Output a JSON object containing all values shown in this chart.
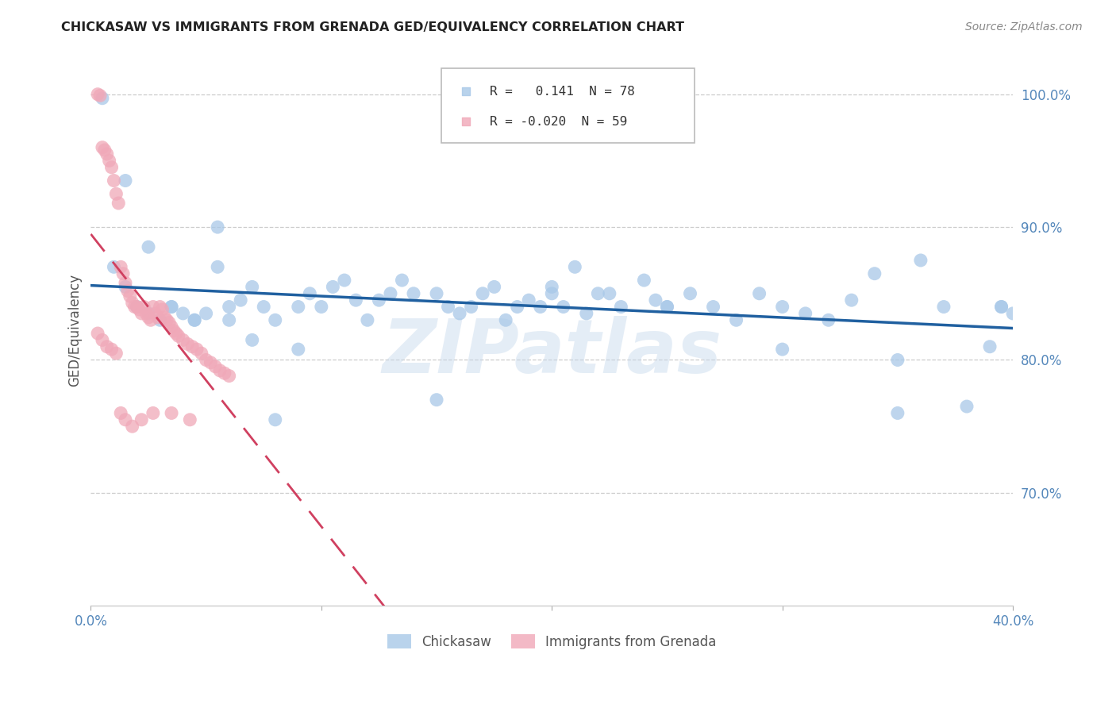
{
  "title": "CHICKASAW VS IMMIGRANTS FROM GRENADA GED/EQUIVALENCY CORRELATION CHART",
  "source": "Source: ZipAtlas.com",
  "ylabel": "GED/Equivalency",
  "xlim": [
    0.0,
    0.4
  ],
  "ylim": [
    0.615,
    1.03
  ],
  "blue_color": "#a8c8e8",
  "pink_color": "#f0a8b8",
  "trend_blue": "#2060a0",
  "trend_pink": "#d04060",
  "watermark": "ZIPatlas",
  "blue_x": [
    0.005,
    0.01,
    0.015,
    0.02,
    0.025,
    0.03,
    0.035,
    0.04,
    0.045,
    0.05,
    0.055,
    0.06,
    0.065,
    0.07,
    0.075,
    0.08,
    0.09,
    0.095,
    0.1,
    0.105,
    0.11,
    0.115,
    0.12,
    0.125,
    0.13,
    0.135,
    0.14,
    0.15,
    0.155,
    0.16,
    0.165,
    0.17,
    0.175,
    0.18,
    0.185,
    0.19,
    0.195,
    0.2,
    0.205,
    0.21,
    0.215,
    0.22,
    0.225,
    0.23,
    0.24,
    0.245,
    0.25,
    0.26,
    0.27,
    0.28,
    0.29,
    0.3,
    0.31,
    0.32,
    0.33,
    0.34,
    0.35,
    0.36,
    0.37,
    0.38,
    0.39,
    0.395,
    0.4,
    0.015,
    0.025,
    0.035,
    0.045,
    0.055,
    0.15,
    0.2,
    0.25,
    0.3,
    0.35,
    0.395,
    0.06,
    0.07,
    0.08,
    0.09
  ],
  "blue_y": [
    0.997,
    0.87,
    0.855,
    0.84,
    0.835,
    0.83,
    0.84,
    0.835,
    0.83,
    0.835,
    0.9,
    0.84,
    0.845,
    0.855,
    0.84,
    0.83,
    0.84,
    0.85,
    0.84,
    0.855,
    0.86,
    0.845,
    0.83,
    0.845,
    0.85,
    0.86,
    0.85,
    0.85,
    0.84,
    0.835,
    0.84,
    0.85,
    0.855,
    0.83,
    0.84,
    0.845,
    0.84,
    0.855,
    0.84,
    0.87,
    0.835,
    0.85,
    0.85,
    0.84,
    0.86,
    0.845,
    0.84,
    0.85,
    0.84,
    0.83,
    0.85,
    0.84,
    0.835,
    0.83,
    0.845,
    0.865,
    0.8,
    0.875,
    0.84,
    0.765,
    0.81,
    0.84,
    0.835,
    0.935,
    0.885,
    0.84,
    0.83,
    0.87,
    0.77,
    0.85,
    0.84,
    0.808,
    0.76,
    0.84,
    0.83,
    0.815,
    0.755,
    0.808
  ],
  "pink_x": [
    0.003,
    0.004,
    0.005,
    0.006,
    0.007,
    0.008,
    0.009,
    0.01,
    0.011,
    0.012,
    0.013,
    0.014,
    0.015,
    0.016,
    0.017,
    0.018,
    0.019,
    0.02,
    0.021,
    0.022,
    0.023,
    0.024,
    0.025,
    0.026,
    0.027,
    0.028,
    0.029,
    0.03,
    0.031,
    0.032,
    0.033,
    0.034,
    0.035,
    0.036,
    0.037,
    0.038,
    0.04,
    0.042,
    0.044,
    0.046,
    0.048,
    0.05,
    0.052,
    0.054,
    0.056,
    0.058,
    0.06,
    0.003,
    0.005,
    0.007,
    0.009,
    0.011,
    0.013,
    0.015,
    0.018,
    0.022,
    0.027,
    0.035,
    0.043
  ],
  "pink_y": [
    1.0,
    0.999,
    0.96,
    0.958,
    0.955,
    0.95,
    0.945,
    0.935,
    0.925,
    0.918,
    0.87,
    0.865,
    0.858,
    0.852,
    0.848,
    0.843,
    0.84,
    0.84,
    0.838,
    0.835,
    0.84,
    0.835,
    0.832,
    0.83,
    0.84,
    0.835,
    0.832,
    0.84,
    0.838,
    0.832,
    0.83,
    0.828,
    0.825,
    0.822,
    0.82,
    0.818,
    0.815,
    0.812,
    0.81,
    0.808,
    0.805,
    0.8,
    0.798,
    0.795,
    0.792,
    0.79,
    0.788,
    0.82,
    0.815,
    0.81,
    0.808,
    0.805,
    0.76,
    0.755,
    0.75,
    0.755,
    0.76,
    0.76,
    0.755
  ]
}
